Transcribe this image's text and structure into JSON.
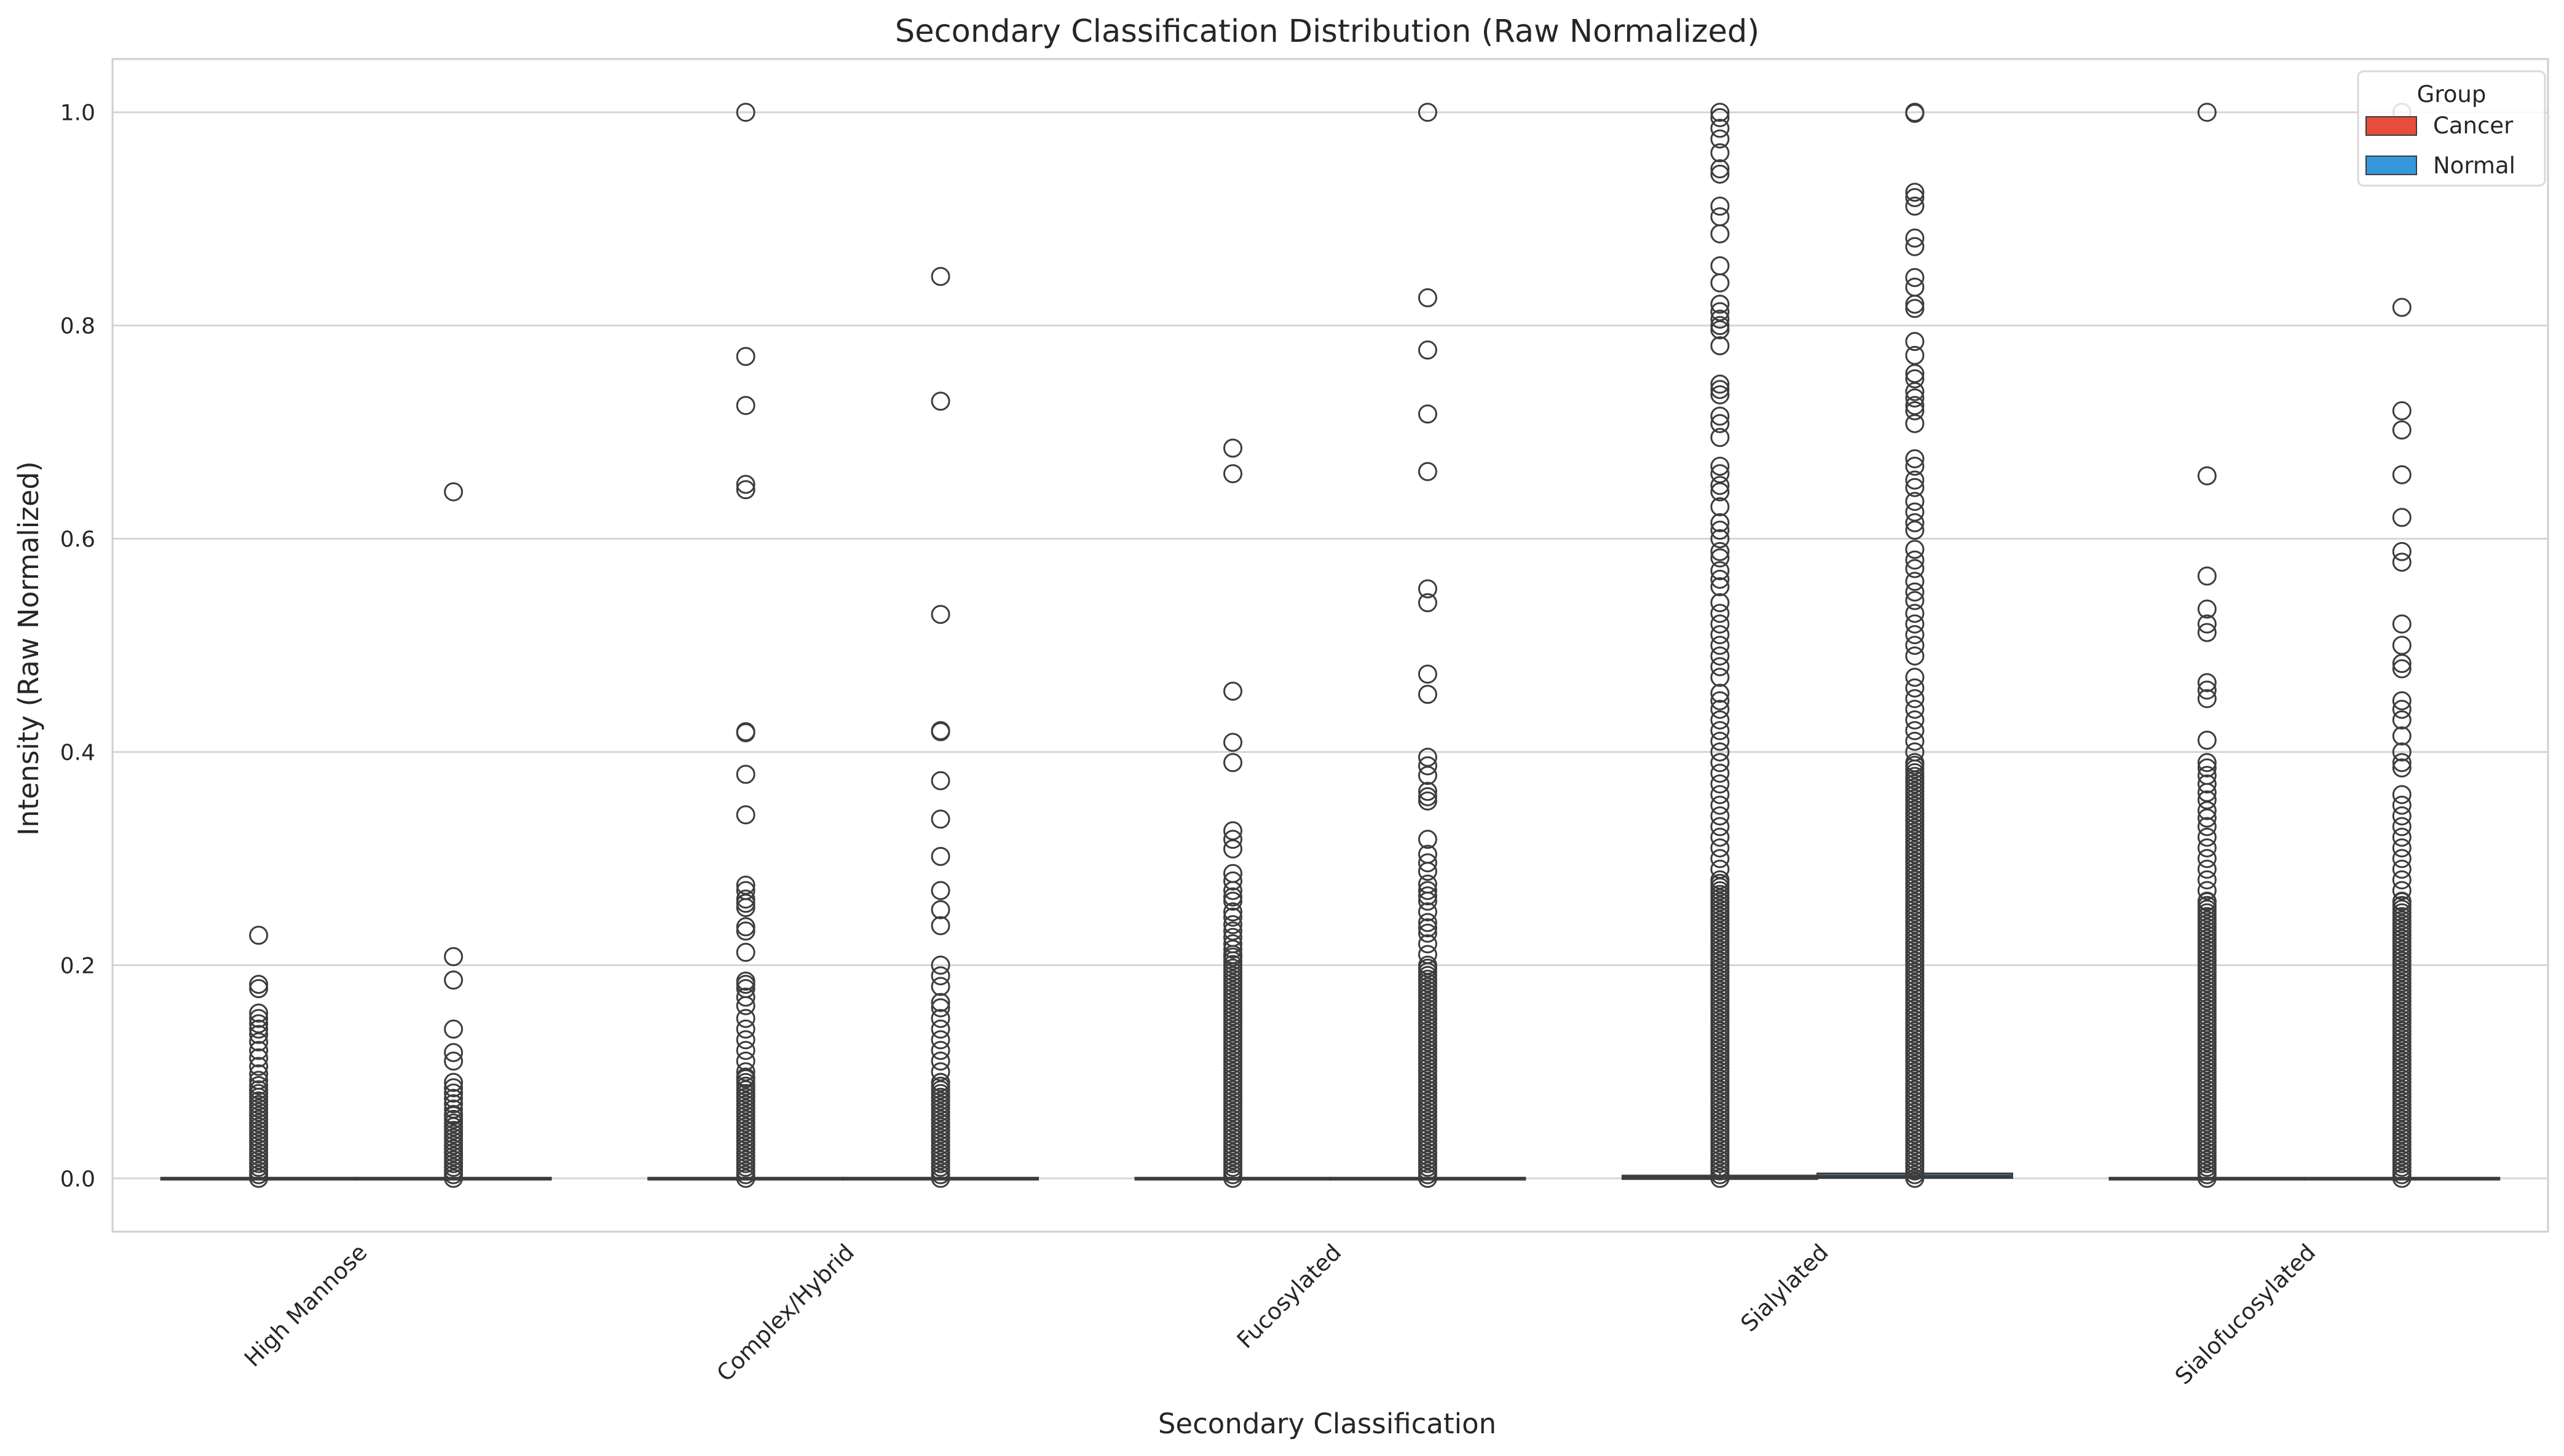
{
  "chart_data": {
    "type": "box",
    "title": "Secondary Classification Distribution (Raw Normalized)",
    "xlabel": "Secondary Classification",
    "ylabel": "Intensity (Raw Normalized)",
    "ylim": [
      -0.05,
      1.05
    ],
    "yticks": [
      "0.0",
      "0.2",
      "0.4",
      "0.6",
      "0.8",
      "1.0"
    ],
    "grid": "horizontal",
    "legend": {
      "title": "Group",
      "placement": "top-right",
      "entries": [
        "Cancer",
        "Normal"
      ]
    },
    "categories": [
      "High Mannose",
      "Complex/Hybrid",
      "Fucosylated",
      "Sialylated",
      "Sialofucosylated"
    ],
    "series": [
      {
        "name": "Cancer",
        "color": "#e74c3c",
        "boxes": [
          {
            "q1": 0.0,
            "median": 0.0,
            "q3": 0.0,
            "whisker_low": 0.0,
            "whisker_high": 0.0,
            "outliers": [
              0.228,
              0.182,
              0.178,
              0.155,
              0.15,
              0.145,
              0.14,
              0.135,
              0.128,
              0.12,
              0.113,
              0.105,
              0.098,
              0.092,
              0.087,
              0.083
            ],
            "dense_range": [
              0.0,
              0.085
            ]
          },
          {
            "q1": 0.0,
            "median": 0.0,
            "q3": 0.0,
            "whisker_low": 0.0,
            "whisker_high": 0.0,
            "outliers": [
              1.0,
              0.771,
              0.725,
              0.651,
              0.646,
              0.419,
              0.418,
              0.379,
              0.341,
              0.275,
              0.27,
              0.262,
              0.258,
              0.254,
              0.236,
              0.232,
              0.212,
              0.185,
              0.182,
              0.178,
              0.17,
              0.162,
              0.15,
              0.14,
              0.13,
              0.12,
              0.11,
              0.1,
              0.095
            ],
            "dense_range": [
              0.0,
              0.095
            ]
          },
          {
            "q1": 0.0,
            "median": 0.0,
            "q3": 0.0,
            "whisker_low": 0.0,
            "whisker_high": 0.0,
            "outliers": [
              0.685,
              0.661,
              0.457,
              0.409,
              0.39,
              0.326,
              0.318,
              0.309,
              0.286,
              0.279,
              0.27,
              0.264,
              0.26,
              0.25,
              0.245,
              0.238,
              0.232,
              0.226,
              0.22,
              0.215,
              0.21
            ],
            "dense_range": [
              0.0,
              0.21
            ]
          },
          {
            "q1": 0.0,
            "median": 0.001,
            "q3": 0.002,
            "whisker_low": 0.0,
            "whisker_high": 0.005,
            "outliers": [
              1.0,
              0.995,
              0.985,
              0.975,
              0.962,
              0.947,
              0.942,
              0.912,
              0.902,
              0.886,
              0.856,
              0.84,
              0.82,
              0.813,
              0.806,
              0.8,
              0.796,
              0.781,
              0.745,
              0.74,
              0.735,
              0.715,
              0.708,
              0.695,
              0.668,
              0.661,
              0.65,
              0.644,
              0.63,
              0.615,
              0.608,
              0.6,
              0.588,
              0.582,
              0.57,
              0.562,
              0.555,
              0.54,
              0.53,
              0.52,
              0.51,
              0.5,
              0.49,
              0.48,
              0.47,
              0.455,
              0.448,
              0.44,
              0.43,
              0.42,
              0.41,
              0.4,
              0.39,
              0.38,
              0.37,
              0.36,
              0.35,
              0.34,
              0.33,
              0.32,
              0.31,
              0.3,
              0.29,
              0.28
            ],
            "dense_range": [
              0.0,
              0.28
            ]
          },
          {
            "q1": 0.0,
            "median": 0.0,
            "q3": 0.0,
            "whisker_low": 0.0,
            "whisker_high": 0.0,
            "outliers": [
              1.0,
              0.659,
              0.565,
              0.534,
              0.52,
              0.512,
              0.465,
              0.458,
              0.45,
              0.411,
              0.39,
              0.385,
              0.378,
              0.37,
              0.362,
              0.355,
              0.345,
              0.338,
              0.33,
              0.32,
              0.31,
              0.3,
              0.29,
              0.28,
              0.27,
              0.26
            ],
            "dense_range": [
              0.0,
              0.26
            ]
          }
        ]
      },
      {
        "name": "Normal",
        "color": "#3498db",
        "boxes": [
          {
            "q1": 0.0,
            "median": 0.0,
            "q3": 0.0,
            "whisker_low": 0.0,
            "whisker_high": 0.0,
            "outliers": [
              0.644,
              0.208,
              0.186,
              0.14,
              0.118,
              0.11,
              0.09,
              0.085,
              0.08,
              0.075,
              0.07,
              0.065,
              0.06
            ],
            "dense_range": [
              0.0,
              0.06
            ]
          },
          {
            "q1": 0.0,
            "median": 0.0,
            "q3": 0.0,
            "whisker_low": 0.0,
            "whisker_high": 0.0,
            "outliers": [
              0.846,
              0.729,
              0.529,
              0.42,
              0.419,
              0.373,
              0.337,
              0.302,
              0.27,
              0.252,
              0.237,
              0.2,
              0.19,
              0.18,
              0.165,
              0.16,
              0.15,
              0.14,
              0.13,
              0.12,
              0.11,
              0.1,
              0.09
            ],
            "dense_range": [
              0.0,
              0.09
            ]
          },
          {
            "q1": 0.0,
            "median": 0.0,
            "q3": 0.0,
            "whisker_low": 0.0,
            "whisker_high": 0.0,
            "outliers": [
              1.0,
              0.826,
              0.777,
              0.717,
              0.663,
              0.553,
              0.54,
              0.473,
              0.454,
              0.395,
              0.387,
              0.378,
              0.363,
              0.358,
              0.354,
              0.318,
              0.304,
              0.296,
              0.288,
              0.276,
              0.27,
              0.265,
              0.26,
              0.25,
              0.24,
              0.235,
              0.23,
              0.22,
              0.21,
              0.2
            ],
            "dense_range": [
              0.0,
              0.2
            ]
          },
          {
            "q1": 0.001,
            "median": 0.002,
            "q3": 0.004,
            "whisker_low": 0.0,
            "whisker_high": 0.008,
            "outliers": [
              1.0,
              0.999,
              0.925,
              0.92,
              0.912,
              0.882,
              0.874,
              0.845,
              0.836,
              0.82,
              0.816,
              0.785,
              0.772,
              0.755,
              0.75,
              0.738,
              0.732,
              0.725,
              0.72,
              0.708,
              0.675,
              0.668,
              0.655,
              0.648,
              0.635,
              0.625,
              0.615,
              0.608,
              0.59,
              0.58,
              0.572,
              0.56,
              0.55,
              0.542,
              0.53,
              0.52,
              0.51,
              0.5,
              0.49,
              0.47,
              0.46,
              0.45,
              0.44,
              0.43,
              0.42,
              0.41,
              0.4,
              0.39
            ],
            "dense_range": [
              0.0,
              0.39
            ]
          },
          {
            "q1": 0.0,
            "median": 0.0,
            "q3": 0.0,
            "whisker_low": 0.0,
            "whisker_high": 0.0,
            "outliers": [
              1.0,
              0.817,
              0.72,
              0.702,
              0.66,
              0.62,
              0.588,
              0.578,
              0.52,
              0.5,
              0.483,
              0.478,
              0.448,
              0.44,
              0.43,
              0.415,
              0.4,
              0.39,
              0.385,
              0.36,
              0.35,
              0.34,
              0.33,
              0.32,
              0.31,
              0.3,
              0.29,
              0.28,
              0.27,
              0.26
            ],
            "dense_range": [
              0.0,
              0.26
            ]
          }
        ]
      }
    ]
  }
}
